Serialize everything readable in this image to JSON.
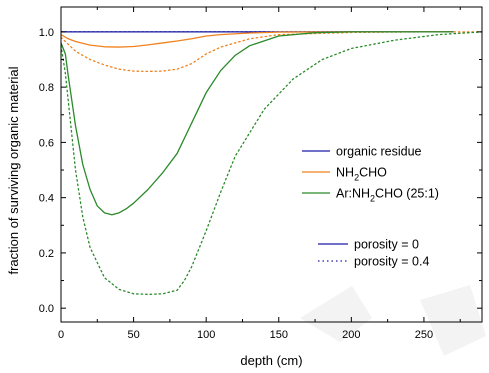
{
  "chart_data": {
    "type": "line",
    "xlabel": "depth (cm)",
    "ylabel": "fraction of surviving organic material",
    "xlim": [
      0,
      290
    ],
    "ylim": [
      -0.05,
      1.09
    ],
    "xticks": [
      0,
      50,
      100,
      150,
      200,
      250
    ],
    "yticks": [
      0.0,
      0.2,
      0.4,
      0.6,
      0.8,
      1.0
    ],
    "ytick_labels": [
      "0.0",
      "0.2",
      "0.4",
      "0.6",
      "0.8",
      "1.0"
    ],
    "grid": false,
    "series": [
      {
        "name": "organic residue",
        "color": "#1a1aa6",
        "porosity": "0",
        "x": [
          0,
          50,
          100,
          150,
          200,
          270
        ],
        "y": [
          1.0,
          1.0,
          1.0,
          1.0,
          1.0,
          1.0
        ]
      },
      {
        "name": "organic residue",
        "color": "#1a1aa6",
        "porosity": "0.4",
        "x": [
          0,
          50,
          100,
          150,
          200,
          270
        ],
        "y": [
          1.0,
          1.0,
          1.0,
          1.0,
          1.0,
          1.0
        ]
      },
      {
        "name": "NH₂CHO",
        "color": "#f0821e",
        "porosity": "0",
        "x": [
          0,
          5,
          10,
          20,
          30,
          40,
          50,
          60,
          70,
          80,
          90,
          100,
          110,
          130,
          150,
          200,
          270
        ],
        "y": [
          0.99,
          0.975,
          0.965,
          0.952,
          0.946,
          0.945,
          0.947,
          0.953,
          0.96,
          0.967,
          0.975,
          0.985,
          0.99,
          0.996,
          0.999,
          1.0,
          1.0
        ]
      },
      {
        "name": "NH₂CHO",
        "color": "#f0821e",
        "porosity": "0.4",
        "x": [
          0,
          5,
          10,
          20,
          30,
          40,
          50,
          60,
          70,
          80,
          90,
          100,
          110,
          130,
          150,
          200,
          250,
          290
        ],
        "y": [
          0.98,
          0.955,
          0.93,
          0.9,
          0.88,
          0.865,
          0.858,
          0.857,
          0.858,
          0.865,
          0.885,
          0.92,
          0.945,
          0.975,
          0.99,
          0.998,
          1.0,
          1.0
        ]
      },
      {
        "name": "Ar:NH₂CHO  (25:1)",
        "color": "#2a8a2a",
        "porosity": "0",
        "x": [
          0,
          3,
          5,
          10,
          15,
          20,
          25,
          30,
          35,
          40,
          45,
          50,
          60,
          70,
          80,
          90,
          100,
          110,
          120,
          130,
          150,
          175,
          200,
          250,
          270
        ],
        "y": [
          0.96,
          0.92,
          0.84,
          0.66,
          0.52,
          0.43,
          0.37,
          0.345,
          0.338,
          0.345,
          0.36,
          0.38,
          0.43,
          0.49,
          0.56,
          0.67,
          0.78,
          0.86,
          0.915,
          0.95,
          0.985,
          0.997,
          1.0,
          1.0,
          1.0
        ]
      },
      {
        "name": "Ar:NH₂CHO  (25:1)",
        "color": "#2a8a2a",
        "porosity": "0.4",
        "x": [
          0,
          3,
          6,
          10,
          15,
          20,
          30,
          40,
          50,
          60,
          70,
          80,
          85,
          90,
          100,
          110,
          120,
          140,
          160,
          180,
          200,
          230,
          260,
          290
        ],
        "y": [
          0.95,
          0.85,
          0.7,
          0.5,
          0.33,
          0.22,
          0.11,
          0.068,
          0.052,
          0.05,
          0.052,
          0.065,
          0.1,
          0.15,
          0.28,
          0.42,
          0.55,
          0.72,
          0.83,
          0.9,
          0.94,
          0.97,
          0.99,
          1.0
        ]
      }
    ],
    "legend_species": [
      {
        "label": "organic residue",
        "color": "#1a1aa6"
      },
      {
        "label_pre": "NH",
        "label_sub": "2",
        "label_post": "CHO",
        "color": "#f0821e"
      },
      {
        "label_pre": "Ar:NH",
        "label_sub": "2",
        "label_post": "CHO  (25:1)",
        "color": "#2a8a2a"
      }
    ],
    "legend_porosity": [
      {
        "label": "porosity = 0",
        "style": "solid",
        "color": "#1a1aa6"
      },
      {
        "label": "porosity = 0.4",
        "style": "dotted",
        "color": "#1a1aa6"
      }
    ],
    "legend_placement": "right"
  }
}
